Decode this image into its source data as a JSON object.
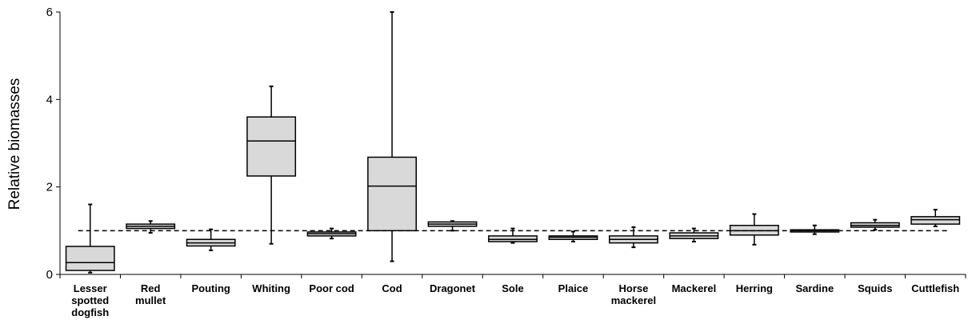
{
  "chart_data": {
    "type": "box",
    "ylabel": "Relative biomasses",
    "categories": [
      "Lesser\nspotted\ndogfish",
      "Red\nmullet",
      "Pouting",
      "Whiting",
      "Poor cod",
      "Cod",
      "Dragonet",
      "Sole",
      "Plaice",
      "Horse\nmackerel",
      "Mackerel",
      "Herring",
      "Sardine",
      "Squids",
      "Cuttlefish"
    ],
    "boxes": [
      {
        "min": 0.04,
        "q1": 0.09,
        "median": 0.27,
        "q3": 0.64,
        "max": 1.6
      },
      {
        "min": 0.95,
        "q1": 1.05,
        "median": 1.1,
        "q3": 1.15,
        "max": 1.22
      },
      {
        "min": 0.55,
        "q1": 0.65,
        "median": 0.72,
        "q3": 0.8,
        "max": 1.03
      },
      {
        "min": 0.7,
        "q1": 2.25,
        "median": 3.05,
        "q3": 3.6,
        "max": 4.3
      },
      {
        "min": 0.82,
        "q1": 0.88,
        "median": 0.93,
        "q3": 0.97,
        "max": 1.05
      },
      {
        "min": 0.3,
        "q1": 1.0,
        "median": 2.02,
        "q3": 2.68,
        "max": 6.0
      },
      {
        "min": 1.0,
        "q1": 1.1,
        "median": 1.15,
        "q3": 1.2,
        "max": 1.22
      },
      {
        "min": 0.72,
        "q1": 0.75,
        "median": 0.8,
        "q3": 0.88,
        "max": 1.05
      },
      {
        "min": 0.75,
        "q1": 0.8,
        "median": 0.85,
        "q3": 0.88,
        "max": 0.98
      },
      {
        "min": 0.62,
        "q1": 0.72,
        "median": 0.8,
        "q3": 0.88,
        "max": 1.08
      },
      {
        "min": 0.75,
        "q1": 0.82,
        "median": 0.88,
        "q3": 0.95,
        "max": 1.05
      },
      {
        "min": 0.68,
        "q1": 0.9,
        "median": 1.0,
        "q3": 1.12,
        "max": 1.38
      },
      {
        "min": 0.92,
        "q1": 0.97,
        "median": 1.0,
        "q3": 1.02,
        "max": 1.12
      },
      {
        "min": 1.02,
        "q1": 1.08,
        "median": 1.12,
        "q3": 1.18,
        "max": 1.25
      },
      {
        "min": 1.1,
        "q1": 1.15,
        "median": 1.25,
        "q3": 1.32,
        "max": 1.48
      }
    ],
    "color": "#d9d9d9",
    "reference_line": 1,
    "ylim": [
      0,
      6
    ],
    "yticks": [
      0,
      2,
      4,
      6
    ],
    "grid": false
  }
}
